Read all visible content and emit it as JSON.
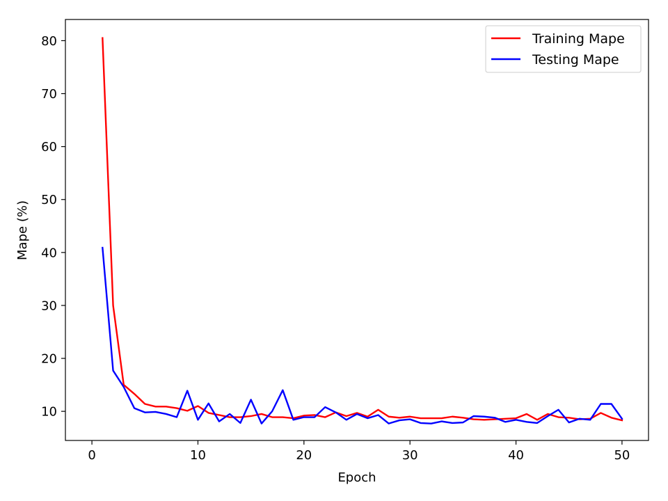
{
  "chart_data": {
    "type": "line",
    "title": "",
    "xlabel": "Epoch",
    "ylabel": "Mape (%)",
    "xlim": [
      -2.5,
      52.5
    ],
    "ylim": [
      4.5,
      84
    ],
    "xticks": [
      0,
      10,
      20,
      30,
      40,
      50
    ],
    "yticks": [
      10,
      20,
      30,
      40,
      50,
      60,
      70,
      80
    ],
    "grid": false,
    "legend_position": "top-right",
    "x": [
      1,
      2,
      3,
      4,
      5,
      6,
      7,
      8,
      9,
      10,
      11,
      12,
      13,
      14,
      15,
      16,
      17,
      18,
      19,
      20,
      21,
      22,
      23,
      24,
      25,
      26,
      27,
      28,
      29,
      30,
      31,
      32,
      33,
      34,
      35,
      36,
      37,
      38,
      39,
      40,
      41,
      42,
      43,
      44,
      45,
      46,
      47,
      48,
      49,
      50
    ],
    "series": [
      {
        "name": "Training Mape",
        "color": "#ff0000",
        "values": [
          80.5,
          30.0,
          15.0,
          13.3,
          11.4,
          10.9,
          10.9,
          10.6,
          10.1,
          11.0,
          9.7,
          9.3,
          8.9,
          8.9,
          9.1,
          9.5,
          8.9,
          8.9,
          8.7,
          9.2,
          9.3,
          8.9,
          9.8,
          9.1,
          9.7,
          9.0,
          10.3,
          9.0,
          8.8,
          9.0,
          8.7,
          8.7,
          8.7,
          9.0,
          8.8,
          8.5,
          8.4,
          8.5,
          8.6,
          8.7,
          9.5,
          8.4,
          9.5,
          8.9,
          8.8,
          8.5,
          8.6,
          9.7,
          8.8,
          8.3
        ]
      },
      {
        "name": "Testing Mape",
        "color": "#0000ff",
        "values": [
          40.9,
          17.7,
          14.6,
          10.6,
          9.8,
          9.9,
          9.5,
          8.9,
          13.9,
          8.4,
          11.5,
          8.1,
          9.5,
          7.8,
          12.2,
          7.7,
          10.0,
          14.0,
          8.4,
          8.9,
          8.9,
          10.8,
          9.8,
          8.4,
          9.5,
          8.7,
          9.3,
          7.7,
          8.3,
          8.5,
          7.8,
          7.7,
          8.1,
          7.8,
          7.9,
          9.1,
          9.0,
          8.8,
          8.0,
          8.4,
          8.0,
          7.8,
          9.1,
          10.3,
          7.9,
          8.6,
          8.4,
          11.4,
          11.4,
          8.6
        ]
      }
    ]
  }
}
